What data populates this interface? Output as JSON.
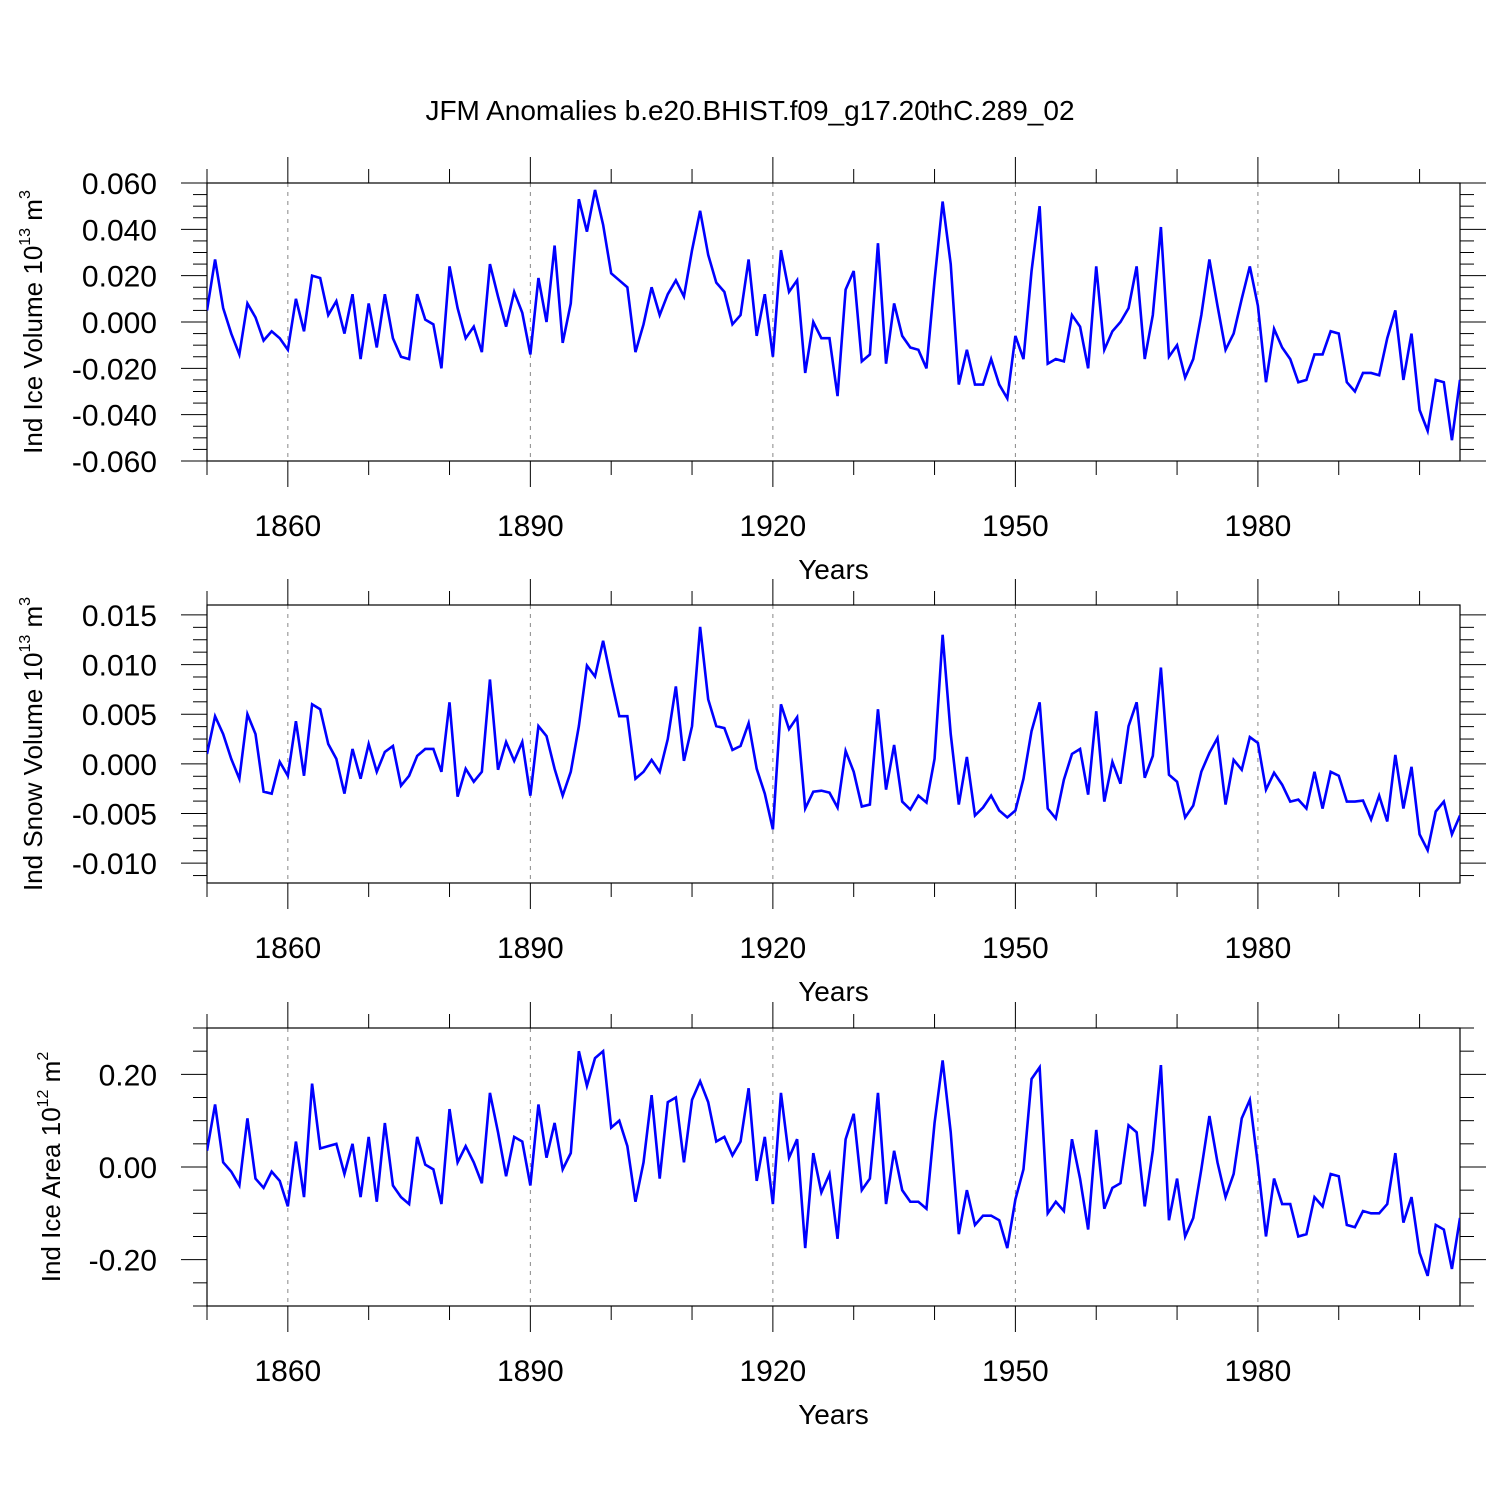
{
  "title": "JFM Anomalies b.e20.BHIST.f09_g17.20thC.289_02",
  "colors": {
    "line": "#0000ff",
    "axis": "#000000",
    "grid": "#888888"
  },
  "chart_data": [
    {
      "type": "line",
      "title": "JFM Anomalies b.e20.BHIST.f09_g17.20thC.289_02",
      "xlabel": "Years",
      "ylabel_main": "Ind Ice Volume 10",
      "ylabel_exp": "13",
      "ylabel_unit": " m",
      "ylabel_unit_exp": "3",
      "xlim": [
        1850,
        2005
      ],
      "ylim": [
        -0.06,
        0.06
      ],
      "xticks": [
        1860,
        1890,
        1920,
        1950,
        1980
      ],
      "xtick_labels": [
        "1860",
        "1890",
        "1920",
        "1950",
        "1980"
      ],
      "yticks": [
        -0.06,
        -0.04,
        -0.02,
        0.0,
        0.02,
        0.04,
        0.06
      ],
      "ytick_labels": [
        "-0.060",
        "-0.040",
        "-0.020",
        "0.000",
        "0.020",
        "0.040",
        "0.060"
      ],
      "x_start": 1850,
      "series": [
        {
          "name": "Ind Ice Volume",
          "values": [
            0.005,
            0.027,
            0.006,
            -0.005,
            -0.014,
            0.008,
            0.002,
            -0.008,
            -0.004,
            -0.007,
            -0.012,
            0.01,
            -0.004,
            0.02,
            0.019,
            0.003,
            0.009,
            -0.005,
            0.012,
            -0.016,
            0.008,
            -0.011,
            0.012,
            -0.007,
            -0.015,
            -0.016,
            0.012,
            0.001,
            -0.001,
            -0.02,
            0.024,
            0.006,
            -0.007,
            -0.002,
            -0.013,
            0.025,
            0.011,
            -0.002,
            0.013,
            0.004,
            -0.014,
            0.019,
            0.0,
            0.033,
            -0.009,
            0.008,
            0.053,
            0.039,
            0.057,
            0.042,
            0.021,
            0.018,
            0.015,
            -0.013,
            -0.001,
            0.015,
            0.003,
            0.012,
            0.018,
            0.011,
            0.031,
            0.048,
            0.029,
            0.017,
            0.013,
            -0.001,
            0.003,
            0.027,
            -0.006,
            0.012,
            -0.015,
            0.031,
            0.013,
            0.018,
            -0.022,
            0.0,
            -0.007,
            -0.007,
            -0.032,
            0.014,
            0.022,
            -0.017,
            -0.014,
            0.034,
            -0.018,
            0.008,
            -0.006,
            -0.011,
            -0.012,
            -0.02,
            0.018,
            0.052,
            0.025,
            -0.027,
            -0.012,
            -0.027,
            -0.027,
            -0.016,
            -0.027,
            -0.033,
            -0.006,
            -0.016,
            0.022,
            0.05,
            -0.018,
            -0.016,
            -0.017,
            0.003,
            -0.002,
            -0.02,
            0.024,
            -0.012,
            -0.004,
            0.0,
            0.006,
            0.024,
            -0.016,
            0.003,
            0.041,
            -0.015,
            -0.01,
            -0.024,
            -0.016,
            0.003,
            0.027,
            0.007,
            -0.012,
            -0.005,
            0.01,
            0.024,
            0.007,
            -0.026,
            -0.003,
            -0.011,
            -0.016,
            -0.026,
            -0.025,
            -0.014,
            -0.014,
            -0.004,
            -0.005,
            -0.026,
            -0.03,
            -0.022,
            -0.022,
            -0.023,
            -0.007,
            0.005,
            -0.025,
            -0.005,
            -0.038,
            -0.047,
            -0.025,
            -0.026,
            -0.051,
            -0.025
          ]
        }
      ]
    },
    {
      "type": "line",
      "xlabel": "Years",
      "ylabel_main": "Ind Snow Volume 10",
      "ylabel_exp": "13",
      "ylabel_unit": " m",
      "ylabel_unit_exp": "3",
      "xlim": [
        1850,
        2005
      ],
      "ylim": [
        -0.012,
        0.016
      ],
      "xticks": [
        1860,
        1890,
        1920,
        1950,
        1980
      ],
      "xtick_labels": [
        "1860",
        "1890",
        "1920",
        "1950",
        "1980"
      ],
      "yticks": [
        -0.01,
        -0.005,
        0.0,
        0.005,
        0.01,
        0.015
      ],
      "ytick_labels": [
        "-0.010",
        "-0.005",
        "0.000",
        "0.005",
        "0.010",
        "0.015"
      ],
      "x_start": 1850,
      "series": [
        {
          "name": "Ind Snow Volume",
          "values": [
            0.001,
            0.0048,
            0.003,
            0.0005,
            -0.0015,
            0.005,
            0.003,
            -0.0028,
            -0.003,
            0.0002,
            -0.0012,
            0.0043,
            -0.0012,
            0.006,
            0.0055,
            0.002,
            0.0005,
            -0.003,
            0.0015,
            -0.0015,
            0.002,
            -0.0008,
            0.0012,
            0.0018,
            -0.0022,
            -0.0012,
            0.0008,
            0.0015,
            0.0015,
            -0.0008,
            0.0062,
            -0.0033,
            -0.0005,
            -0.0018,
            -0.0008,
            0.0085,
            -0.0006,
            0.0022,
            0.0003,
            0.0022,
            -0.0032,
            0.0038,
            0.0028,
            -0.0005,
            -0.0032,
            -0.0008,
            0.0038,
            0.0099,
            0.0088,
            0.0124,
            0.0085,
            0.0048,
            0.0048,
            -0.0015,
            -0.0008,
            0.0004,
            -0.0008,
            0.0025,
            0.0078,
            0.0003,
            0.0038,
            0.0138,
            0.0065,
            0.0038,
            0.0036,
            0.0014,
            0.0018,
            0.0041,
            -0.0005,
            -0.003,
            -0.0066,
            0.006,
            0.0035,
            0.0047,
            -0.0045,
            -0.0028,
            -0.0027,
            -0.0029,
            -0.0044,
            0.0013,
            -0.0008,
            -0.0043,
            -0.0041,
            0.0055,
            -0.0026,
            0.0019,
            -0.0038,
            -0.0046,
            -0.0032,
            -0.0039,
            0.0005,
            0.013,
            0.003,
            -0.0041,
            0.0007,
            -0.0052,
            -0.0044,
            -0.0032,
            -0.0047,
            -0.0054,
            -0.0047,
            -0.0015,
            0.0033,
            0.0062,
            -0.0045,
            -0.0055,
            -0.0016,
            0.001,
            0.0015,
            -0.0031,
            0.0053,
            -0.0038,
            0.0002,
            -0.002,
            0.0038,
            0.0062,
            -0.0014,
            0.0008,
            0.0097,
            -0.0011,
            -0.0018,
            -0.0054,
            -0.0042,
            -0.0008,
            0.0011,
            0.0026,
            -0.0041,
            0.0004,
            -0.0006,
            0.0027,
            0.0021,
            -0.0026,
            -0.0009,
            -0.0021,
            -0.0038,
            -0.0036,
            -0.0045,
            -0.0008,
            -0.0045,
            -0.0008,
            -0.0012,
            -0.0038,
            -0.0038,
            -0.0037,
            -0.0056,
            -0.0032,
            -0.0058,
            0.0009,
            -0.0045,
            -0.0003,
            -0.0071,
            -0.0087,
            -0.0048,
            -0.0038,
            -0.0071,
            -0.0052
          ]
        }
      ]
    },
    {
      "type": "line",
      "xlabel": "Years",
      "ylabel_main": "Ind Ice Area 10",
      "ylabel_exp": "12",
      "ylabel_unit": " m",
      "ylabel_unit_exp": "2",
      "xlim": [
        1850,
        2005
      ],
      "ylim": [
        -0.3,
        0.3
      ],
      "xticks": [
        1860,
        1890,
        1920,
        1950,
        1980
      ],
      "xtick_labels": [
        "1860",
        "1890",
        "1920",
        "1950",
        "1980"
      ],
      "yticks": [
        -0.2,
        0.0,
        0.2
      ],
      "ytick_labels": [
        "-0.20",
        "0.00",
        "0.20"
      ],
      "x_start": 1850,
      "series": [
        {
          "name": "Ind Ice Area",
          "values": [
            0.035,
            0.135,
            0.01,
            -0.01,
            -0.04,
            0.105,
            -0.025,
            -0.045,
            -0.01,
            -0.03,
            -0.085,
            0.055,
            -0.065,
            0.18,
            0.04,
            0.045,
            0.05,
            -0.015,
            0.05,
            -0.065,
            0.065,
            -0.075,
            0.095,
            -0.04,
            -0.065,
            -0.08,
            0.065,
            0.005,
            -0.005,
            -0.08,
            0.125,
            0.01,
            0.045,
            0.01,
            -0.035,
            0.16,
            0.075,
            -0.02,
            0.065,
            0.055,
            -0.04,
            0.135,
            0.02,
            0.095,
            -0.005,
            0.03,
            0.25,
            0.175,
            0.235,
            0.25,
            0.085,
            0.1,
            0.045,
            -0.075,
            0.01,
            0.155,
            -0.025,
            0.14,
            0.15,
            0.01,
            0.145,
            0.185,
            0.14,
            0.055,
            0.065,
            0.025,
            0.055,
            0.17,
            -0.03,
            0.065,
            -0.08,
            0.16,
            0.02,
            0.06,
            -0.175,
            0.03,
            -0.055,
            -0.015,
            -0.155,
            0.06,
            0.115,
            -0.05,
            -0.025,
            0.16,
            -0.08,
            0.035,
            -0.05,
            -0.075,
            -0.075,
            -0.09,
            0.095,
            0.23,
            0.075,
            -0.145,
            -0.05,
            -0.125,
            -0.105,
            -0.105,
            -0.115,
            -0.175,
            -0.07,
            -0.005,
            0.19,
            0.215,
            -0.1,
            -0.075,
            -0.095,
            0.06,
            -0.025,
            -0.135,
            0.08,
            -0.09,
            -0.045,
            -0.035,
            0.09,
            0.075,
            -0.085,
            0.035,
            0.22,
            -0.115,
            -0.025,
            -0.15,
            -0.11,
            -0.005,
            0.11,
            0.01,
            -0.065,
            -0.015,
            0.105,
            0.145,
            0.005,
            -0.15,
            -0.025,
            -0.08,
            -0.08,
            -0.15,
            -0.145,
            -0.065,
            -0.085,
            -0.015,
            -0.02,
            -0.125,
            -0.13,
            -0.095,
            -0.1,
            -0.1,
            -0.08,
            0.03,
            -0.12,
            -0.065,
            -0.185,
            -0.235,
            -0.125,
            -0.135,
            -0.22,
            -0.11
          ]
        }
      ]
    }
  ]
}
